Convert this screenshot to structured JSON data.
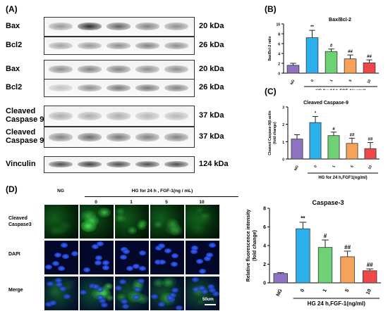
{
  "panels": {
    "A": "(A)",
    "B": "(B)",
    "C": "(C)",
    "D": "(D)"
  },
  "western_blot": {
    "rows": [
      {
        "label": "Bax",
        "kda": "20 kDa",
        "intensity": [
          0.45,
          0.95,
          0.7,
          0.55,
          0.5
        ]
      },
      {
        "label": "Bcl2",
        "kda": "26 kDa",
        "intensity": [
          0.4,
          0.45,
          0.5,
          0.55,
          0.5
        ]
      },
      {
        "label": "Bax",
        "kda": "20 kDa",
        "intensity": [
          0.5,
          0.55,
          0.55,
          0.5,
          0.5
        ]
      },
      {
        "label": "Bcl2",
        "kda": "26 kDa",
        "intensity": [
          0.25,
          0.5,
          0.6,
          0.6,
          0.55
        ]
      },
      {
        "label": "Cleaved\nCaspase 9",
        "kda": "37 kDa",
        "intensity": [
          0.35,
          0.35,
          0.35,
          0.3,
          0.3
        ]
      },
      {
        "label": "Cleaved\nCaspase 9",
        "kda": "37 kDa",
        "intensity": [
          0.55,
          0.65,
          0.6,
          0.55,
          0.55
        ]
      },
      {
        "label": "Vinculin",
        "kda": "124 kDa",
        "intensity": [
          0.8,
          0.85,
          0.8,
          0.8,
          0.8
        ]
      }
    ]
  },
  "microscopy": {
    "group_header": "HG for 24 h ,  FGF-1(ng / mL)",
    "columns": [
      "NG",
      "0",
      "1",
      "5",
      "10"
    ],
    "rows": [
      "Cleaved\nCaspase3",
      "DAPI",
      "Merge"
    ],
    "scale_bar": "50um"
  },
  "chart_data": [
    {
      "type": "bar",
      "title": "Bax/Bcl-2",
      "ylabel": "Bax/Bcl-2 ratio",
      "xlabel": "HG for 24 h,FGF-1(ng/ml)",
      "categories": [
        "NG",
        "0",
        "1",
        "5",
        "10"
      ],
      "values": [
        1.6,
        7.2,
        4.4,
        2.9,
        2.1
      ],
      "errors": [
        0.4,
        1.5,
        0.5,
        0.8,
        0.6
      ],
      "annotations": [
        "",
        "**",
        "#",
        "##",
        "##"
      ],
      "ylim": [
        0,
        10
      ],
      "yticks": [
        0,
        2,
        4,
        6,
        8,
        10
      ],
      "grid": false
    },
    {
      "type": "bar",
      "title": "Cleaved Caspase-9",
      "ylabel": "Cleaved Caspase-9/β-actin\n(fold change)",
      "xlabel": "HG for 24 h,FGF1(ng/ml)",
      "categories": [
        "NG",
        "0",
        "1",
        "5",
        "10"
      ],
      "values": [
        1.15,
        2.1,
        1.35,
        0.9,
        0.6
      ],
      "errors": [
        0.25,
        0.35,
        0.2,
        0.3,
        0.35
      ],
      "annotations": [
        "",
        "*",
        "#",
        "##",
        "##"
      ],
      "ylim": [
        0,
        3
      ],
      "yticks": [
        0,
        1,
        2,
        3
      ],
      "grid": false
    },
    {
      "type": "bar",
      "title": "Caspase-3",
      "ylabel": "Relative fluorescence intensity\n(fold change)",
      "xlabel": "HG 24 h,FGF-1(ng/ml)",
      "categories": [
        "NG",
        "0",
        "1",
        "5",
        "10"
      ],
      "values": [
        1.0,
        5.8,
        3.8,
        2.8,
        1.3
      ],
      "errors": [
        0.1,
        0.7,
        0.8,
        0.6,
        0.2
      ],
      "annotations": [
        "",
        "**",
        "#",
        "##",
        "##"
      ],
      "ylim": [
        0,
        8
      ],
      "yticks": [
        0,
        2,
        4,
        6,
        8
      ],
      "grid": false
    }
  ],
  "colors": {
    "bars": [
      "#8e73c2",
      "#2bb0ec",
      "#6fd176",
      "#f5a25a",
      "#ef4848"
    ],
    "bar_edge": "#333333"
  }
}
